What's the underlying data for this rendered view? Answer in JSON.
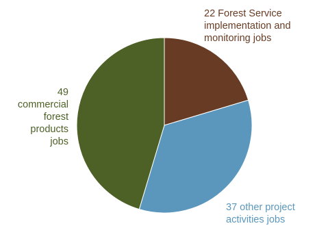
{
  "chart_data": {
    "type": "pie",
    "slices": [
      {
        "value": 22,
        "label_lines": [
          "22 Forest Service",
          "implementation and",
          "monitoring jobs"
        ],
        "color": "#683c24",
        "label_color": "#683c24"
      },
      {
        "value": 37,
        "label_lines": [
          "37 other project",
          "activities jobs"
        ],
        "color": "#5b97bd",
        "label_color": "#5b97bd"
      },
      {
        "value": 49,
        "label_lines": [
          "49",
          "commercial",
          "forest",
          "products",
          "jobs"
        ],
        "color": "#4d6126",
        "label_color": "#4d6126"
      }
    ],
    "start_angle_deg": 0,
    "direction": "clockwise"
  }
}
